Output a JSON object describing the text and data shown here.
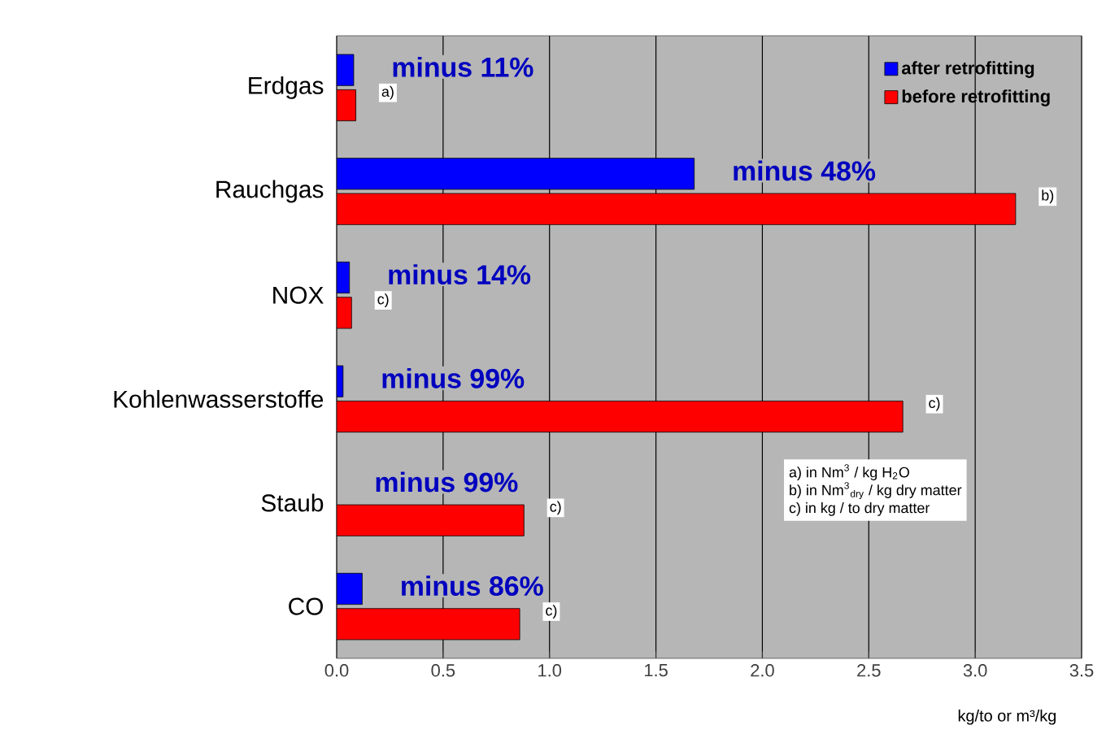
{
  "chart_data": {
    "type": "bar",
    "orientation": "horizontal",
    "categories": [
      "Erdgas",
      "Rauchgas",
      "NOX",
      "Kohlenwasserstoffe",
      "Staub",
      "CO"
    ],
    "series": [
      {
        "name": "after retrofitting",
        "color": "#0000ff",
        "values": [
          0.08,
          1.68,
          0.06,
          0.03,
          null,
          0.12
        ]
      },
      {
        "name": "before retrofitting",
        "color": "#ff0000",
        "values": [
          0.09,
          3.19,
          0.07,
          2.66,
          0.88,
          0.86
        ]
      }
    ],
    "xlim": [
      0,
      3.5
    ],
    "xticks": [
      {
        "value": 0,
        "label": "0.0"
      },
      0.5,
      {
        "value": 1,
        "label": "1.0"
      },
      1.5,
      {
        "value": 2,
        "label": "2.0"
      },
      2.5,
      {
        "value": 3,
        "label": "3.0"
      },
      3.5
    ],
    "xlabel": "kg/to or m³/kg",
    "grid": "x",
    "legend": "top right",
    "annotations": [
      "minus 11%",
      "minus 48%",
      "minus 14%",
      "minus 99%",
      "minus 99%",
      "minus 86%",
      "a)",
      "b)",
      "c)",
      "c)",
      "c)",
      "c)",
      "a) in Nm$^{3}$ / kg H$_{2}$O",
      "b) in Nm$^{3}$$_{dry}$ / kg dry matter",
      "c) in kg / to dry matter"
    ]
  }
}
